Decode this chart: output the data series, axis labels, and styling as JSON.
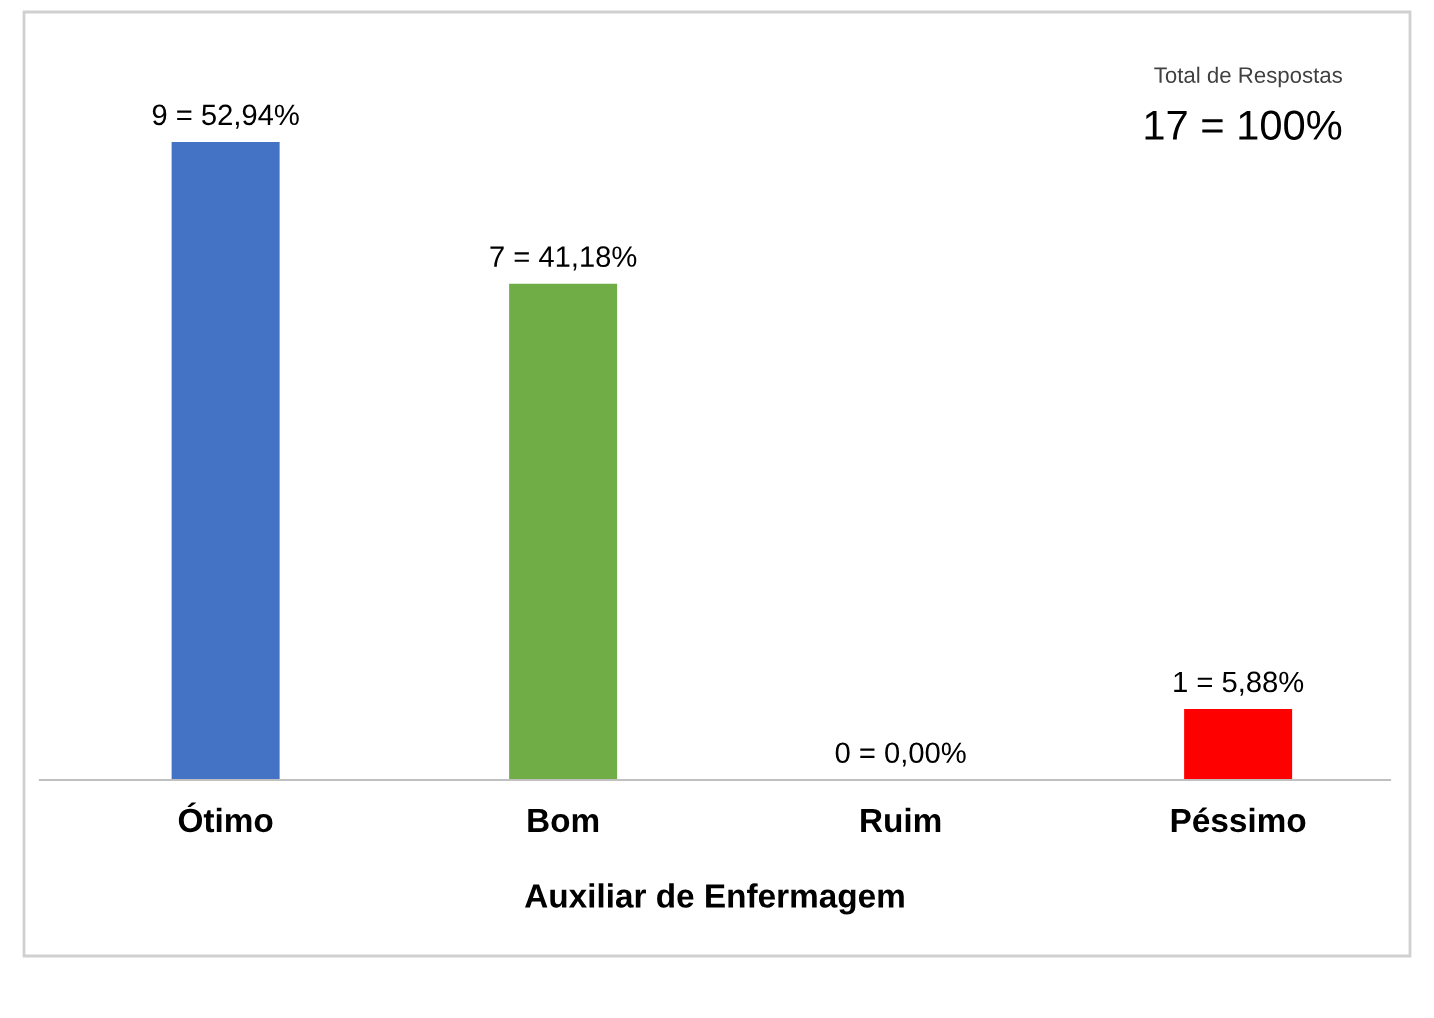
{
  "chart_data": {
    "type": "bar",
    "xlabel": "Auxiliar de Enfermagem",
    "categories": [
      "Ótimo",
      "Bom",
      "Ruim",
      "Péssimo"
    ],
    "values": [
      9,
      7,
      0,
      1
    ],
    "colors": [
      "#4472c4",
      "#70ad47",
      "#a5a5a5",
      "#ff0000"
    ],
    "value_labels": [
      "9 = 52,94%",
      "7 = 41,18%",
      "0 = 0,00%",
      "1 = 5,88%"
    ],
    "annotations": [
      "Total de Respostas",
      "17 = 100%"
    ],
    "grid": false,
    "legend": false
  }
}
